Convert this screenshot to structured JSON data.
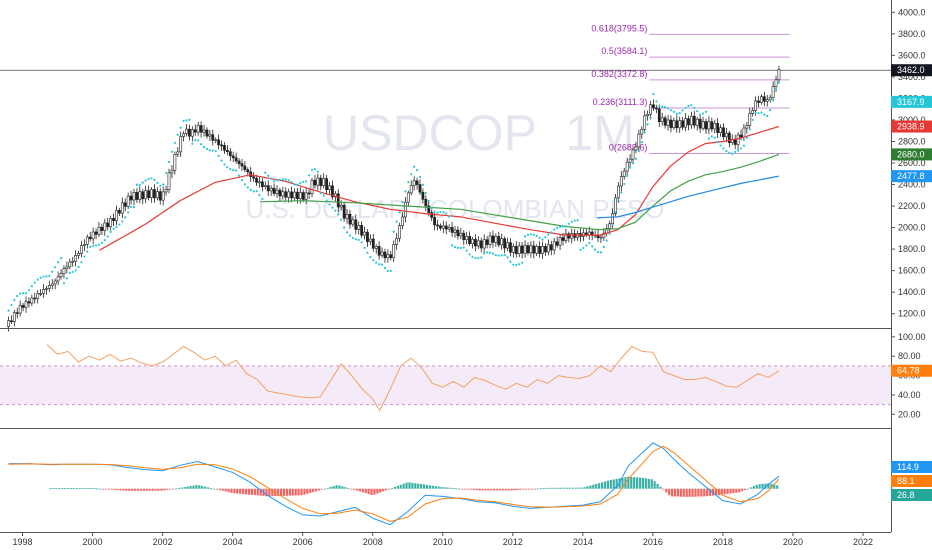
{
  "chart_data": [
    {
      "type": "candlestick",
      "watermark": {
        "symbol": "USDCOP",
        "interval": "1M",
        "description": "U.S. DOLLAR / COLOMBIAN PESO"
      },
      "x_ticks": [
        "1998",
        "2000",
        "2002",
        "2004",
        "2006",
        "2008",
        "2010",
        "2012",
        "2014",
        "2016",
        "2018",
        "2020",
        "2022"
      ],
      "y_ticks": [
        "1200.0",
        "1400.0",
        "1600.0",
        "1800.0",
        "2000.0",
        "2200.0",
        "2400.0",
        "2600.0",
        "2800.0",
        "3000.0",
        "3200.0",
        "3400.0",
        "3600.0",
        "3800.0",
        "4000.0"
      ],
      "ylim": [
        1160,
        4040
      ],
      "close_series": {
        "x": [
          1997.6,
          1997.9,
          1998.3,
          1998.6,
          1998.9,
          1999.2,
          1999.5,
          1999.8,
          2000.1,
          2000.5,
          2000.8,
          2001.1,
          2001.4,
          2001.7,
          2002.0,
          2002.3,
          2002.6,
          2002.8,
          2003.0,
          2003.3,
          2003.6,
          2004.0,
          2004.3,
          2004.6,
          2005.0,
          2005.4,
          2005.8,
          2006.1,
          2006.3,
          2006.6,
          2006.9,
          2007.2,
          2007.6,
          2007.9,
          2008.2,
          2008.5,
          2008.8,
          2009.0,
          2009.2,
          2009.5,
          2009.8,
          2010.1,
          2010.4,
          2010.8,
          2011.1,
          2011.4,
          2011.7,
          2012.0,
          2012.4,
          2012.8,
          2013.1,
          2013.5,
          2013.9,
          2014.2,
          2014.5,
          2014.8,
          2015.0,
          2015.2,
          2015.5,
          2015.8,
          2016.0,
          2016.2,
          2016.5,
          2016.8,
          2017.1,
          2017.4,
          2017.7,
          2018.0,
          2018.3,
          2018.6,
          2018.9,
          2019.1,
          2019.3,
          2019.6
        ],
        "y": [
          1110,
          1250,
          1340,
          1420,
          1490,
          1620,
          1720,
          1880,
          1960,
          2050,
          2180,
          2290,
          2300,
          2320,
          2280,
          2600,
          2900,
          2870,
          2930,
          2860,
          2780,
          2650,
          2560,
          2450,
          2360,
          2310,
          2300,
          2290,
          2430,
          2420,
          2300,
          2110,
          1990,
          1880,
          1760,
          1720,
          2040,
          2320,
          2450,
          2210,
          2010,
          2000,
          1950,
          1870,
          1840,
          1900,
          1860,
          1790,
          1800,
          1790,
          1820,
          1920,
          1930,
          1950,
          1900,
          2050,
          2380,
          2550,
          2750,
          3050,
          3150,
          3000,
          2960,
          2960,
          3000,
          2950,
          2950,
          2880,
          2780,
          2900,
          3150,
          3200,
          3170,
          3462
        ]
      },
      "moving_averages": [
        {
          "color": "#e53935",
          "last": "2938.9",
          "x": [
            2000.2,
            2001.5,
            2002.5,
            2003.5,
            2004.5,
            2005.5,
            2006.5,
            2007.5,
            2008.5,
            2009.5,
            2010.5,
            2011.5,
            2012.5,
            2013.5,
            2014.5,
            2015.0,
            2015.5,
            2016.0,
            2016.5,
            2017.0,
            2017.5,
            2018.0,
            2018.5,
            2019.0,
            2019.6
          ],
          "y": [
            1790,
            2030,
            2250,
            2420,
            2490,
            2430,
            2330,
            2240,
            2170,
            2130,
            2100,
            2040,
            1980,
            1930,
            1930,
            1980,
            2120,
            2380,
            2570,
            2700,
            2780,
            2800,
            2830,
            2880,
            2939
          ]
        },
        {
          "color": "#43a047",
          "last": "2680.0",
          "x": [
            2004.8,
            2006.0,
            2007.5,
            2009.0,
            2010.5,
            2012.0,
            2013.5,
            2014.5,
            2015.0,
            2015.5,
            2016.0,
            2016.5,
            2017.0,
            2017.5,
            2018.0,
            2018.5,
            2019.0,
            2019.6
          ],
          "y": [
            2240,
            2250,
            2230,
            2200,
            2170,
            2090,
            2010,
            1980,
            1990,
            2050,
            2200,
            2340,
            2430,
            2490,
            2520,
            2560,
            2610,
            2680
          ]
        },
        {
          "color": "#1e88e5",
          "last": "2477.8",
          "x": [
            2014.4,
            2015.0,
            2015.5,
            2016.0,
            2016.5,
            2017.0,
            2017.5,
            2018.0,
            2018.5,
            2019.0,
            2019.6
          ],
          "y": [
            2090,
            2100,
            2140,
            2190,
            2240,
            2290,
            2330,
            2370,
            2410,
            2440,
            2478
          ]
        }
      ],
      "price_tags": [
        {
          "label": "3462.0",
          "bg": "#131722",
          "value": 3462
        },
        {
          "label": "3167.9",
          "bg": "#26c6da",
          "value": 3167.9
        },
        {
          "label": "2938.9",
          "bg": "#e53935",
          "value": 2938.9
        },
        {
          "label": "2680.0",
          "bg": "#2e7d32",
          "value": 2680
        },
        {
          "label": "2477.8",
          "bg": "#2196f3",
          "value": 2477.8
        }
      ],
      "fibonacci": [
        {
          "label": "0.618(3795.5)",
          "value": 3795.5
        },
        {
          "label": "0.5(3584.1)",
          "value": 3584.1
        },
        {
          "label": "0.382(3372.8)",
          "value": 3372.8
        },
        {
          "label": "0.236(3111.3)",
          "value": 3111.3
        },
        {
          "label": "0(2688.6)",
          "value": 2688.6
        }
      ]
    },
    {
      "type": "line",
      "indicator": "RSI",
      "y_ticks": [
        "100.00",
        "80.00",
        "60.00",
        "40.00",
        "20.00"
      ],
      "ylim": [
        10,
        105
      ],
      "band": [
        30,
        70
      ],
      "last": "64.78",
      "series_color": "#f4a261",
      "x": [
        1998.7,
        1999.0,
        1999.3,
        1999.6,
        1999.9,
        2000.2,
        2000.5,
        2000.8,
        2001.1,
        2001.4,
        2001.7,
        2002.0,
        2002.3,
        2002.6,
        2002.9,
        2003.2,
        2003.5,
        2003.8,
        2004.1,
        2004.4,
        2004.7,
        2005.0,
        2005.3,
        2005.6,
        2005.9,
        2006.2,
        2006.5,
        2006.8,
        2007.1,
        2007.4,
        2007.7,
        2008.0,
        2008.2,
        2008.5,
        2008.8,
        2009.1,
        2009.4,
        2009.7,
        2010.0,
        2010.3,
        2010.6,
        2010.9,
        2011.2,
        2011.5,
        2011.8,
        2012.1,
        2012.4,
        2012.7,
        2013.0,
        2013.3,
        2013.6,
        2013.9,
        2014.2,
        2014.5,
        2014.8,
        2015.1,
        2015.4,
        2015.7,
        2016.0,
        2016.3,
        2016.6,
        2016.9,
        2017.2,
        2017.5,
        2017.8,
        2018.1,
        2018.4,
        2018.7,
        2019.0,
        2019.3,
        2019.6
      ],
      "y": [
        92,
        82,
        85,
        74,
        80,
        76,
        82,
        75,
        78,
        73,
        70,
        74,
        82,
        90,
        84,
        76,
        80,
        70,
        76,
        62,
        56,
        44,
        42,
        40,
        38,
        37,
        38,
        55,
        72,
        60,
        46,
        36,
        24,
        46,
        70,
        78,
        68,
        52,
        48,
        54,
        48,
        58,
        55,
        50,
        46,
        52,
        48,
        56,
        52,
        60,
        58,
        57,
        60,
        70,
        64,
        78,
        90,
        85,
        84,
        64,
        60,
        56,
        56,
        58,
        54,
        49,
        48,
        55,
        62,
        58,
        65
      ]
    },
    {
      "type": "line",
      "indicator": "MACD",
      "last_values": [
        {
          "label": "114.9",
          "bg": "#2196f3",
          "value": 114.9
        },
        {
          "label": "88.1",
          "bg": "#ff7f0e",
          "value": 88.1
        },
        {
          "label": "26.8",
          "bg": "#26a69a",
          "value": 26.8
        }
      ],
      "ylim": [
        -360,
        520
      ],
      "macd": {
        "color": "#2196f3",
        "x": [
          1997.6,
          1998.2,
          1998.8,
          1999.2,
          1999.6,
          2000.0,
          2000.5,
          2001.0,
          2001.5,
          2002.0,
          2002.5,
          2003.0,
          2003.5,
          2004.0,
          2004.5,
          2005.0,
          2005.5,
          2006.0,
          2006.5,
          2007.0,
          2007.5,
          2008.0,
          2008.5,
          2009.0,
          2009.5,
          2010.0,
          2010.5,
          2011.0,
          2011.5,
          2012.0,
          2012.5,
          2013.0,
          2013.5,
          2014.0,
          2014.5,
          2015.0,
          2015.3,
          2015.7,
          2016.0,
          2016.3,
          2016.6,
          2017.0,
          2017.5,
          2018.0,
          2018.5,
          2019.0,
          2019.3,
          2019.6
        ],
        "y": [
          230,
          230,
          220,
          225,
          225,
          225,
          220,
          195,
          175,
          165,
          215,
          250,
          200,
          150,
          60,
          -60,
          -160,
          -240,
          -250,
          -210,
          -170,
          -270,
          -330,
          -210,
          -60,
          -70,
          -90,
          -120,
          -130,
          -160,
          -180,
          -170,
          -160,
          -150,
          -120,
          30,
          210,
          330,
          420,
          370,
          270,
          150,
          20,
          -110,
          -140,
          -50,
          40,
          115
        ]
      },
      "signal": {
        "color": "#ff7f0e",
        "x": [
          1997.6,
          1998.2,
          1998.8,
          1999.2,
          1999.6,
          2000.0,
          2000.5,
          2001.0,
          2001.5,
          2002.0,
          2002.5,
          2003.0,
          2003.5,
          2004.0,
          2004.5,
          2005.0,
          2005.5,
          2006.0,
          2006.5,
          2007.0,
          2007.5,
          2008.0,
          2008.5,
          2009.0,
          2009.5,
          2010.0,
          2010.5,
          2011.0,
          2011.5,
          2012.0,
          2012.5,
          2013.0,
          2013.5,
          2014.0,
          2014.5,
          2015.0,
          2015.3,
          2015.7,
          2016.0,
          2016.3,
          2016.6,
          2017.0,
          2017.5,
          2018.0,
          2018.5,
          2019.0,
          2019.3,
          2019.6
        ],
        "y": [
          225,
          228,
          225,
          224,
          224,
          224,
          222,
          210,
          192,
          178,
          192,
          225,
          220,
          180,
          110,
          10,
          -90,
          -180,
          -230,
          -225,
          -195,
          -230,
          -300,
          -260,
          -140,
          -90,
          -85,
          -105,
          -120,
          -145,
          -165,
          -170,
          -165,
          -158,
          -140,
          -50,
          90,
          230,
          340,
          390,
          330,
          220,
          80,
          -60,
          -120,
          -90,
          -20,
          88
        ]
      },
      "histogram": {
        "x": [
          1999.0,
          2000.0,
          2001.0,
          2002.0,
          2003.0,
          2004.0,
          2005.0,
          2006.0,
          2007.0,
          2008.0,
          2009.0,
          2010.0,
          2011.0,
          2012.0,
          2013.0,
          2014.0,
          2014.8,
          2015.3,
          2015.7,
          2016.0,
          2016.5,
          2017.0,
          2017.5,
          2018.0,
          2018.5,
          2019.0,
          2019.3,
          2019.6
        ],
        "y": [
          6,
          6,
          -20,
          -18,
          35,
          -40,
          -70,
          -60,
          35,
          -60,
          60,
          15,
          -15,
          -15,
          8,
          10,
          80,
          110,
          100,
          85,
          -70,
          -75,
          -70,
          -55,
          -30,
          40,
          50,
          27
        ]
      }
    }
  ]
}
